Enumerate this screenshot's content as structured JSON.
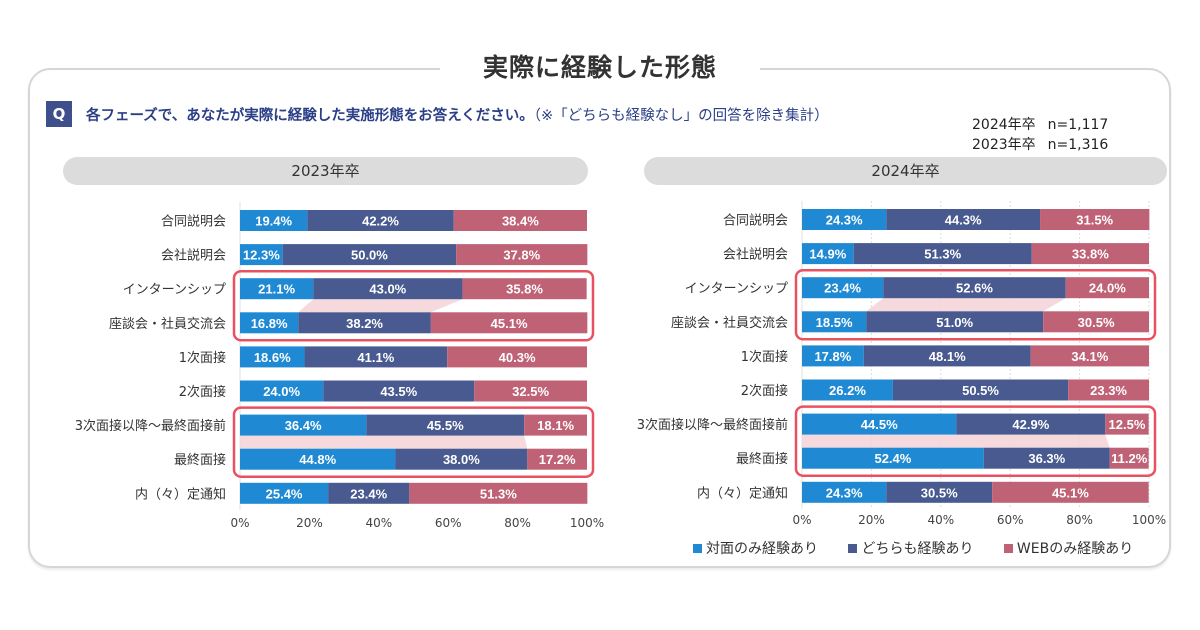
{
  "header": {
    "title": "実際に経験した形態",
    "q_badge": "Q",
    "question": "各フェーズで、あなたが実際に経験した実施形態をお答えください。",
    "question_note": "（※「どちらも経験なし」の回答を除き集計）",
    "sample_sizes": [
      {
        "label": "2024年卒",
        "n": "n=1,117"
      },
      {
        "label": "2023年卒",
        "n": "n=1,316"
      }
    ]
  },
  "colors": {
    "in_person": "#1f8ad3",
    "both": "#485a8f",
    "web": "#bf6276",
    "highlight": "#ea5160",
    "connector": "#f3d2d7"
  },
  "legend": [
    {
      "label": "対面のみ経験あり",
      "color_key": "in_person"
    },
    {
      "label": "どちらも経験あり",
      "color_key": "both"
    },
    {
      "label": "WEBのみ経験あり",
      "color_key": "web"
    }
  ],
  "chart_data": [
    {
      "type": "bar",
      "stacked": true,
      "orientation": "horizontal",
      "title": "2023年卒",
      "categories": [
        "合同説明会",
        "会社説明会",
        "インターンシップ",
        "座談会・社員交流会",
        "1次面接",
        "2次面接",
        "3次面接以降～最終面接前",
        "最終面接",
        "内（々）定通知"
      ],
      "series": [
        {
          "name": "対面のみ経験あり",
          "values": [
            19.4,
            12.3,
            21.1,
            16.8,
            18.6,
            24.0,
            36.4,
            44.8,
            25.4
          ]
        },
        {
          "name": "どちらも経験あり",
          "values": [
            42.2,
            50.0,
            43.0,
            38.2,
            41.1,
            43.5,
            45.5,
            38.0,
            23.4
          ]
        },
        {
          "name": "WEBのみ経験あり",
          "values": [
            38.4,
            37.8,
            35.8,
            45.1,
            40.3,
            32.5,
            18.1,
            17.2,
            51.3
          ]
        }
      ],
      "xticks": [
        "0%",
        "20%",
        "40%",
        "60%",
        "80%",
        "100%"
      ],
      "xlim": [
        0,
        100
      ],
      "grid": false,
      "highlight_groups": [
        [
          2,
          3
        ],
        [
          6,
          7
        ]
      ]
    },
    {
      "type": "bar",
      "stacked": true,
      "orientation": "horizontal",
      "title": "2024年卒",
      "categories": [
        "合同説明会",
        "会社説明会",
        "インターンシップ",
        "座談会・社員交流会",
        "1次面接",
        "2次面接",
        "3次面接以降～最終面接前",
        "最終面接",
        "内（々）定通知"
      ],
      "series": [
        {
          "name": "対面のみ経験あり",
          "values": [
            24.3,
            14.9,
            23.4,
            18.5,
            17.8,
            26.2,
            44.5,
            52.4,
            24.3
          ]
        },
        {
          "name": "どちらも経験あり",
          "values": [
            44.3,
            51.3,
            52.6,
            51.0,
            48.1,
            50.5,
            42.9,
            36.3,
            30.5
          ]
        },
        {
          "name": "WEBのみ経験あり",
          "values": [
            31.5,
            33.8,
            24.0,
            30.5,
            34.1,
            23.3,
            12.5,
            11.2,
            45.1
          ]
        }
      ],
      "xticks": [
        "0%",
        "20%",
        "40%",
        "60%",
        "80%",
        "100%"
      ],
      "xlim": [
        0,
        100
      ],
      "grid": true,
      "legend_position": "bottom",
      "highlight_groups": [
        [
          2,
          3
        ],
        [
          6,
          7
        ]
      ]
    }
  ]
}
